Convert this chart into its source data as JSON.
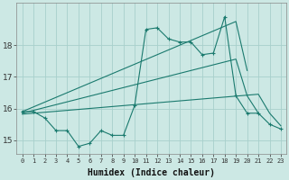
{
  "xlabel": "Humidex (Indice chaleur)",
  "x": [
    0,
    1,
    2,
    3,
    4,
    5,
    6,
    7,
    8,
    9,
    10,
    11,
    12,
    13,
    14,
    15,
    16,
    17,
    18,
    19,
    20,
    21,
    22,
    23
  ],
  "line_jagged": [
    15.9,
    15.9,
    15.7,
    15.3,
    15.3,
    14.8,
    14.9,
    15.3,
    15.15,
    15.15,
    16.1,
    18.5,
    18.55,
    18.2,
    18.1,
    18.1,
    17.7,
    17.75,
    18.9,
    16.4,
    15.85,
    15.85,
    15.5,
    15.35
  ],
  "line_upper": [
    15.9,
    16.05,
    16.2,
    16.35,
    16.5,
    16.65,
    16.8,
    16.95,
    17.1,
    17.25,
    17.4,
    17.55,
    17.7,
    17.85,
    18.0,
    18.15,
    18.3,
    18.45,
    18.6,
    18.75,
    17.2,
    null,
    null,
    null
  ],
  "line_mid": [
    15.85,
    15.94,
    16.03,
    16.12,
    16.21,
    16.3,
    16.39,
    16.48,
    16.57,
    16.66,
    16.75,
    16.84,
    16.93,
    17.02,
    17.11,
    17.2,
    17.29,
    17.38,
    17.47,
    17.56,
    16.4,
    15.85,
    null,
    null
  ],
  "line_lower": [
    15.82,
    15.85,
    15.88,
    15.91,
    15.94,
    15.97,
    16.0,
    16.03,
    16.06,
    16.09,
    16.12,
    16.15,
    16.18,
    16.21,
    16.24,
    16.27,
    16.3,
    16.33,
    16.36,
    16.39,
    16.42,
    16.45,
    15.85,
    15.45
  ],
  "line_color": "#1a7a6e",
  "bg_color": "#cce8e4",
  "grid_color": "#a8d0cc",
  "ylim": [
    14.55,
    19.35
  ],
  "yticks": [
    15,
    16,
    17,
    18
  ],
  "xticks": [
    0,
    1,
    2,
    3,
    4,
    5,
    6,
    7,
    8,
    9,
    10,
    11,
    12,
    13,
    14,
    15,
    16,
    17,
    18,
    19,
    20,
    21,
    22,
    23
  ]
}
